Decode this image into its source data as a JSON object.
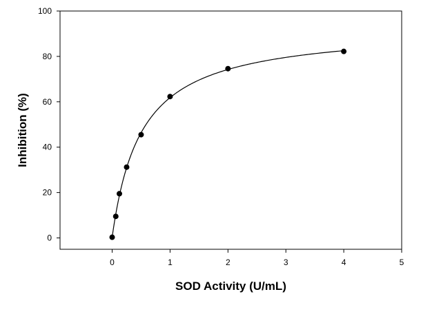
{
  "chart_data": {
    "type": "scatter",
    "title": "",
    "xlabel": "SOD Activity (U/mL)",
    "ylabel": "Inhibition (%)",
    "xlim": [
      -0.9,
      5
    ],
    "ylim": [
      -5,
      100
    ],
    "xticks": [
      0,
      1,
      2,
      3,
      4,
      5
    ],
    "yticks": [
      0,
      20,
      40,
      60,
      80,
      100
    ],
    "grid": false,
    "legend": "none",
    "series": [
      {
        "points": [
          {
            "x": 0,
            "y": 0.3
          },
          {
            "x": 0.0625,
            "y": 9.5
          },
          {
            "x": 0.125,
            "y": 19.5
          },
          {
            "x": 0.25,
            "y": 31.2
          },
          {
            "x": 0.5,
            "y": 45.5
          },
          {
            "x": 1,
            "y": 62.3
          },
          {
            "x": 2,
            "y": 74.6
          },
          {
            "x": 4,
            "y": 82.2
          }
        ],
        "fit_curve": "hyperbolic"
      }
    ],
    "colors": {
      "marker": "#000000",
      "line": "#000000",
      "axis": "#000000"
    }
  }
}
